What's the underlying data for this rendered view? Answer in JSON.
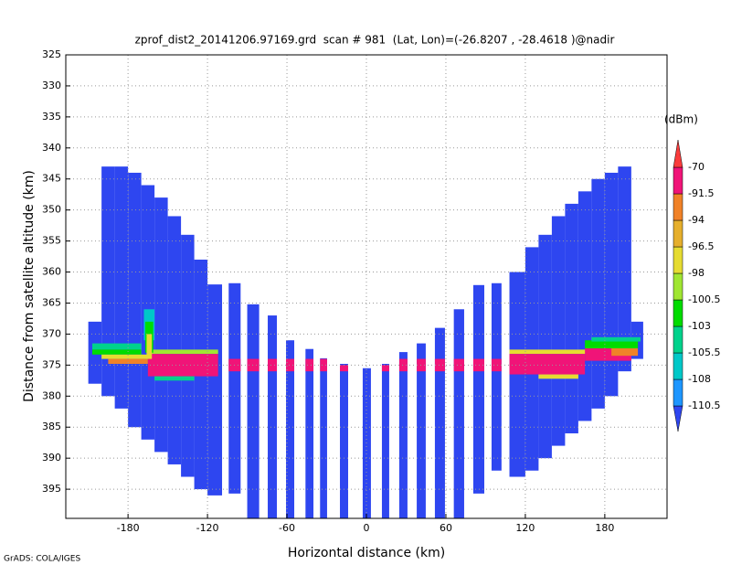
{
  "chart_data": {
    "type": "heatmap",
    "title": "zprof_dist2_20141206.97169.grd  scan # 981  (Lat, Lon)=(-26.8207 , -28.4618 )@nadir",
    "xlabel": "Horizontal distance (km)",
    "ylabel": "Distance from satellite altitude (km)",
    "source": "GrADS: COLA/IGES",
    "xlim": [
      -227,
      227
    ],
    "xticks": [
      -180,
      -120,
      -60,
      0,
      60,
      120,
      180
    ],
    "ylim": [
      325,
      399.7
    ],
    "y_inverted": true,
    "yticks": [
      325,
      330,
      335,
      340,
      345,
      350,
      355,
      360,
      365,
      370,
      375,
      380,
      385,
      390,
      395
    ],
    "grid": true,
    "colorbar": {
      "label": "(dBm)",
      "levels": [
        -110.5,
        -108,
        -105.5,
        -103,
        -100.5,
        -98,
        -96.5,
        -94,
        -91.5,
        -70
      ],
      "colors": [
        "#2e46f0",
        "#1e96ff",
        "#00c8c8",
        "#00d28c",
        "#00dc00",
        "#a0e632",
        "#e6dc32",
        "#e6af2d",
        "#f08228",
        "#f01478",
        "#fa3c3c"
      ]
    },
    "cells": [
      {
        "x": [
          -210,
          -200
        ],
        "y": [
          368,
          378
        ],
        "value": -115
      },
      {
        "x": [
          -200,
          -190
        ],
        "y": [
          343,
          380
        ],
        "value": -115
      },
      {
        "x": [
          -190,
          -180
        ],
        "y": [
          343,
          382
        ],
        "value": -115
      },
      {
        "x": [
          -180,
          -170
        ],
        "y": [
          344,
          385
        ],
        "value": -115
      },
      {
        "x": [
          -170,
          -160
        ],
        "y": [
          346,
          387
        ],
        "value": -115
      },
      {
        "x": [
          -160,
          -150
        ],
        "y": [
          348,
          389
        ],
        "value": -115
      },
      {
        "x": [
          -150,
          -140
        ],
        "y": [
          351,
          391
        ],
        "value": -115
      },
      {
        "x": [
          -140,
          -130
        ],
        "y": [
          354,
          393
        ],
        "value": -115
      },
      {
        "x": [
          -130,
          -120
        ],
        "y": [
          358,
          395
        ],
        "value": -115
      },
      {
        "x": [
          -120,
          -109
        ],
        "y": [
          362,
          396
        ],
        "value": -115
      },
      {
        "x": [
          -104,
          -95
        ],
        "y": [
          361.8,
          395.7
        ],
        "value": -115
      },
      {
        "x": [
          -90,
          -81
        ],
        "y": [
          365.2,
          399.7
        ],
        "value": -115
      },
      {
        "x": [
          -74.5,
          -67.6
        ],
        "y": [
          367,
          399.7
        ],
        "value": -115
      },
      {
        "x": [
          -60.7,
          -54.5
        ],
        "y": [
          371,
          399.7
        ],
        "value": -115
      },
      {
        "x": [
          -46,
          -40
        ],
        "y": [
          372.4,
          399.7
        ],
        "value": -115
      },
      {
        "x": [
          -35,
          -29.7
        ],
        "y": [
          373.9,
          399.7
        ],
        "value": -115
      },
      {
        "x": [
          -20,
          -13.8
        ],
        "y": [
          374.8,
          399.7
        ],
        "value": -115
      },
      {
        "x": [
          -2.8,
          3.4
        ],
        "y": [
          375.5,
          399.7
        ],
        "value": -115
      },
      {
        "x": [
          11.7,
          17.2
        ],
        "y": [
          374.8,
          399.7
        ],
        "value": -115
      },
      {
        "x": [
          24.8,
          31
        ],
        "y": [
          372.9,
          399.7
        ],
        "value": -115
      },
      {
        "x": [
          38,
          44.8
        ],
        "y": [
          371.5,
          399.7
        ],
        "value": -115
      },
      {
        "x": [
          51.7,
          59.3
        ],
        "y": [
          369,
          399.7
        ],
        "value": -115
      },
      {
        "x": [
          66,
          73.8
        ],
        "y": [
          366,
          399.7
        ],
        "value": -115
      },
      {
        "x": [
          80.7,
          89
        ],
        "y": [
          362.1,
          395.7
        ],
        "value": -115
      },
      {
        "x": [
          94.5,
          102
        ],
        "y": [
          361.8,
          392
        ],
        "value": -115
      },
      {
        "x": [
          108,
          120
        ],
        "y": [
          360,
          393
        ],
        "value": -115
      },
      {
        "x": [
          120,
          130
        ],
        "y": [
          356,
          392
        ],
        "value": -115
      },
      {
        "x": [
          130,
          140
        ],
        "y": [
          354,
          390
        ],
        "value": -115
      },
      {
        "x": [
          140,
          150
        ],
        "y": [
          351,
          388
        ],
        "value": -115
      },
      {
        "x": [
          150,
          160
        ],
        "y": [
          349,
          386
        ],
        "value": -115
      },
      {
        "x": [
          160,
          170
        ],
        "y": [
          347,
          384
        ],
        "value": -115
      },
      {
        "x": [
          170,
          180
        ],
        "y": [
          345,
          382
        ],
        "value": -115
      },
      {
        "x": [
          180,
          190
        ],
        "y": [
          344,
          380
        ],
        "value": -115
      },
      {
        "x": [
          190,
          200
        ],
        "y": [
          343,
          376
        ],
        "value": -115
      },
      {
        "x": [
          200,
          209
        ],
        "y": [
          368,
          374
        ],
        "value": -115
      },
      {
        "x": [
          -207,
          -170
        ],
        "y": [
          371.5,
          372.5
        ],
        "value": -104
      },
      {
        "x": [
          -207,
          -170
        ],
        "y": [
          372.5,
          373.3
        ],
        "value": -101
      },
      {
        "x": [
          -200,
          -165
        ],
        "y": [
          373.3,
          374
        ],
        "value": -97
      },
      {
        "x": [
          -195,
          -165
        ],
        "y": [
          374,
          374.8
        ],
        "value": -93
      },
      {
        "x": [
          -165,
          -112
        ],
        "y": [
          372.5,
          373.2
        ],
        "value": -99
      },
      {
        "x": [
          -165,
          -112
        ],
        "y": [
          373.2,
          376.8
        ],
        "value": -80
      },
      {
        "x": [
          -160,
          -130
        ],
        "y": [
          376.8,
          377.5
        ],
        "value": -104
      },
      {
        "x": [
          -168,
          -160
        ],
        "y": [
          366,
          371
        ],
        "value": -106
      },
      {
        "x": [
          -167,
          -161
        ],
        "y": [
          368,
          373
        ],
        "value": -101
      },
      {
        "x": [
          -166,
          -162
        ],
        "y": [
          370,
          374
        ],
        "value": -97
      },
      {
        "x": [
          108,
          170
        ],
        "y": [
          372.5,
          373.2
        ],
        "value": -97
      },
      {
        "x": [
          108,
          165
        ],
        "y": [
          373.2,
          376.5
        ],
        "value": -80
      },
      {
        "x": [
          165,
          200
        ],
        "y": [
          372.3,
          374.3
        ],
        "value": -80
      },
      {
        "x": [
          165,
          205
        ],
        "y": [
          371,
          372.3
        ],
        "value": -101
      },
      {
        "x": [
          170,
          207
        ],
        "y": [
          370.5,
          371.2
        ],
        "value": -104
      },
      {
        "x": [
          185,
          205
        ],
        "y": [
          372.3,
          373.5
        ],
        "value": -93
      },
      {
        "x": [
          130,
          160
        ],
        "y": [
          376.5,
          377.2
        ],
        "value": -97
      },
      {
        "x": [
          -104,
          -95
        ],
        "y": [
          374,
          376
        ],
        "value": -80
      },
      {
        "x": [
          -90,
          -81
        ],
        "y": [
          374,
          376
        ],
        "value": -80
      },
      {
        "x": [
          -74.5,
          -67.6
        ],
        "y": [
          374,
          376
        ],
        "value": -80
      },
      {
        "x": [
          -60.7,
          -54.5
        ],
        "y": [
          374,
          376
        ],
        "value": -80
      },
      {
        "x": [
          -46,
          -40
        ],
        "y": [
          374,
          376
        ],
        "value": -80
      },
      {
        "x": [
          -35,
          -29.7
        ],
        "y": [
          374,
          376
        ],
        "value": -80
      },
      {
        "x": [
          -20,
          -13.8
        ],
        "y": [
          375,
          376
        ],
        "value": -80
      },
      {
        "x": [
          11.7,
          17.2
        ],
        "y": [
          375,
          376
        ],
        "value": -80
      },
      {
        "x": [
          24.8,
          31
        ],
        "y": [
          374,
          376
        ],
        "value": -80
      },
      {
        "x": [
          38,
          44.8
        ],
        "y": [
          374,
          376
        ],
        "value": -80
      },
      {
        "x": [
          51.7,
          59.3
        ],
        "y": [
          374,
          376
        ],
        "value": -80
      },
      {
        "x": [
          66,
          73.8
        ],
        "y": [
          374,
          376
        ],
        "value": -80
      },
      {
        "x": [
          80.7,
          89
        ],
        "y": [
          374,
          376
        ],
        "value": -80
      },
      {
        "x": [
          94.5,
          102
        ],
        "y": [
          374,
          376
        ],
        "value": -80
      }
    ]
  }
}
